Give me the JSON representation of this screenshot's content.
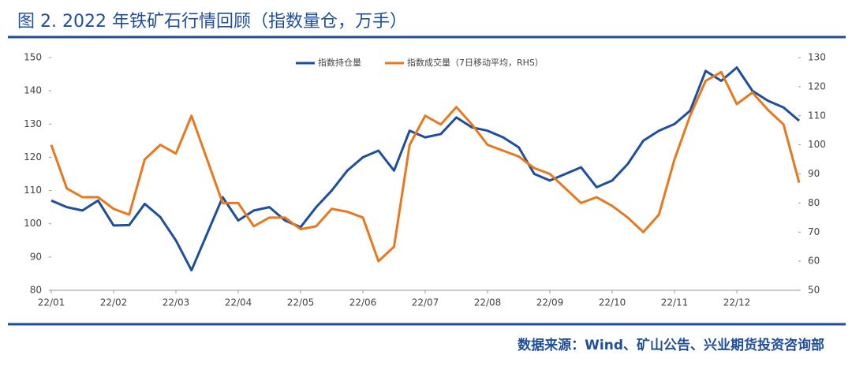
{
  "chart_data": {
    "type": "line",
    "title": "图 2. 2022 年铁矿石行情回顾（指数量仓，万手）",
    "source": "数据来源：Wind、矿山公告、兴业期货投资咨询部",
    "categories": [
      "22/01",
      null,
      null,
      null,
      "22/02",
      null,
      null,
      null,
      "22/03",
      null,
      null,
      null,
      "22/04",
      null,
      null,
      null,
      "22/05",
      null,
      null,
      null,
      "22/06",
      null,
      null,
      null,
      "22/07",
      null,
      null,
      null,
      "22/08",
      null,
      null,
      null,
      "22/09",
      null,
      null,
      null,
      "22/10",
      null,
      null,
      null,
      "22/11",
      null,
      null,
      null,
      "22/12",
      null,
      null,
      null,
      null
    ],
    "series": [
      {
        "name": "指数持仓量",
        "color": "#1f4e9c",
        "values": [
          107,
          105,
          104,
          107,
          99.5,
          99.6,
          106,
          102,
          95,
          86,
          97,
          108,
          101,
          104,
          105,
          101,
          99,
          105,
          110,
          116,
          120,
          122,
          116,
          128,
          126,
          127,
          132,
          129,
          128,
          126,
          123,
          115,
          113,
          115,
          117,
          111,
          113,
          118,
          125,
          128,
          130,
          134,
          146,
          143,
          147,
          140,
          137,
          135,
          131
        ]
      },
      {
        "name": "指数成交量（7日移动平均，RHS）",
        "color": "#e8781e",
        "axis": "y2",
        "values": [
          100,
          85,
          82,
          82,
          78,
          76,
          95,
          100,
          97,
          110,
          95,
          80,
          80,
          72,
          75,
          75,
          71,
          72,
          78,
          77,
          75,
          60,
          65,
          100,
          110,
          107,
          113,
          107,
          100,
          98,
          96,
          92,
          90,
          85,
          80,
          82,
          79,
          75,
          70,
          76,
          95,
          110,
          122,
          125,
          114,
          118,
          112,
          107,
          87
        ]
      }
    ],
    "ylim": [
      80,
      150
    ],
    "yticks": [
      80,
      90,
      100,
      110,
      120,
      130,
      140,
      150
    ],
    "y2lim": [
      50,
      130
    ],
    "y2ticks": [
      50,
      60,
      70,
      80,
      90,
      100,
      110,
      120,
      130
    ],
    "grid": false,
    "legend": "top"
  }
}
